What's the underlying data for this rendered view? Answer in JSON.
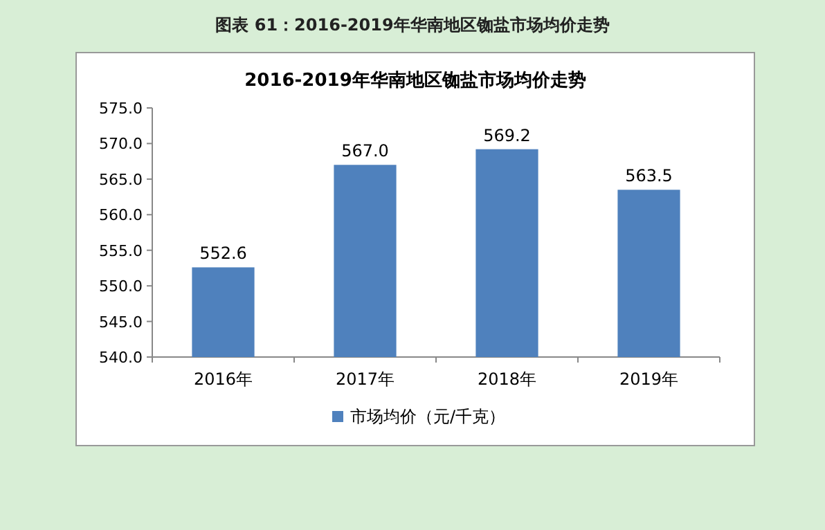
{
  "chart_data": {
    "type": "bar",
    "title": "2016-2019年华南地区铷盐市场均价走势",
    "annotations": [
      "图表 61：2016-2019年华南地区铷盐市场均价走势"
    ],
    "categories": [
      "2016年",
      "2017年",
      "2018年",
      "2019年"
    ],
    "series": [
      {
        "name": "市场均价（元/千克）",
        "color": "#4f81bd",
        "values": [
          552.6,
          567.0,
          569.2,
          563.5
        ],
        "value_labels": [
          "552.6",
          "567.0",
          "569.2",
          "563.5"
        ]
      }
    ],
    "ylim": [
      540,
      575
    ],
    "yticks": [
      {
        "value": 540,
        "label": "540.0"
      },
      {
        "value": 545,
        "label": "545.0"
      },
      {
        "value": 550,
        "label": "550.0"
      },
      {
        "value": 555,
        "label": "555.0"
      },
      {
        "value": 560,
        "label": "560.0"
      },
      {
        "value": 565,
        "label": "565.0"
      },
      {
        "value": 570,
        "label": "570.0"
      },
      {
        "value": 575,
        "label": "575.0"
      }
    ],
    "legend": "bottom"
  }
}
